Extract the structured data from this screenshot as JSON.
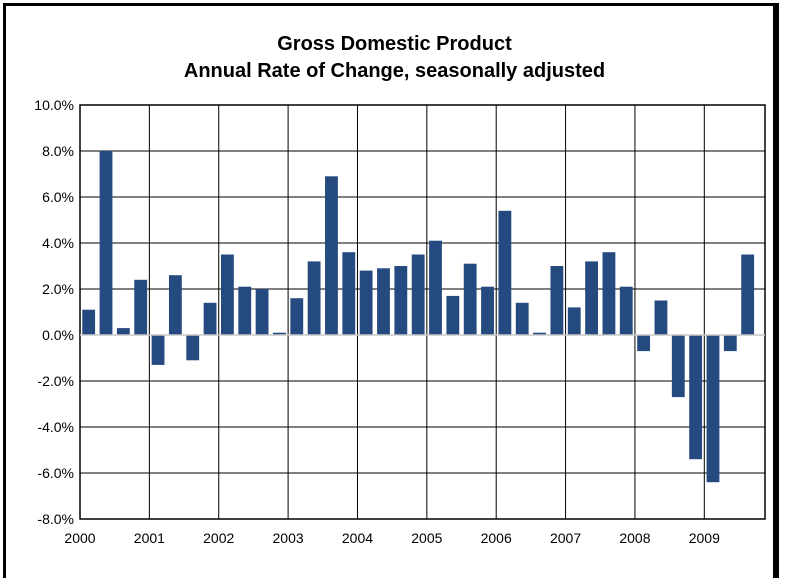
{
  "chart_data": {
    "type": "bar",
    "title": "Gross Domestic Product",
    "subtitle": "Annual Rate of Change, seasonally adjusted",
    "xlabel": "",
    "ylabel": "",
    "ylim": [
      -8.0,
      10.0
    ],
    "y_ticks": [
      "10.0%",
      "8.0%",
      "6.0%",
      "4.0%",
      "2.0%",
      "0.0%",
      "-2.0%",
      "-4.0%",
      "-6.0%",
      "-8.0%"
    ],
    "y_tick_values": [
      10,
      8,
      6,
      4,
      2,
      0,
      -2,
      -4,
      -6,
      -8
    ],
    "x_labels": [
      "2000",
      "2001",
      "2002",
      "2003",
      "2004",
      "2005",
      "2006",
      "2007",
      "2008",
      "2009"
    ],
    "grid": "both",
    "bar_color": "#254a80",
    "values": [
      1.1,
      8.0,
      0.3,
      2.4,
      -1.3,
      2.6,
      -1.1,
      1.4,
      3.5,
      2.1,
      2.0,
      0.1,
      1.6,
      3.2,
      6.9,
      3.6,
      2.8,
      2.9,
      3.0,
      3.5,
      4.1,
      1.7,
      3.1,
      2.1,
      5.4,
      1.4,
      0.1,
      3.0,
      1.2,
      3.2,
      3.6,
      2.1,
      -0.7,
      1.5,
      -2.7,
      -5.4,
      -6.4,
      -0.7,
      3.5
    ]
  }
}
